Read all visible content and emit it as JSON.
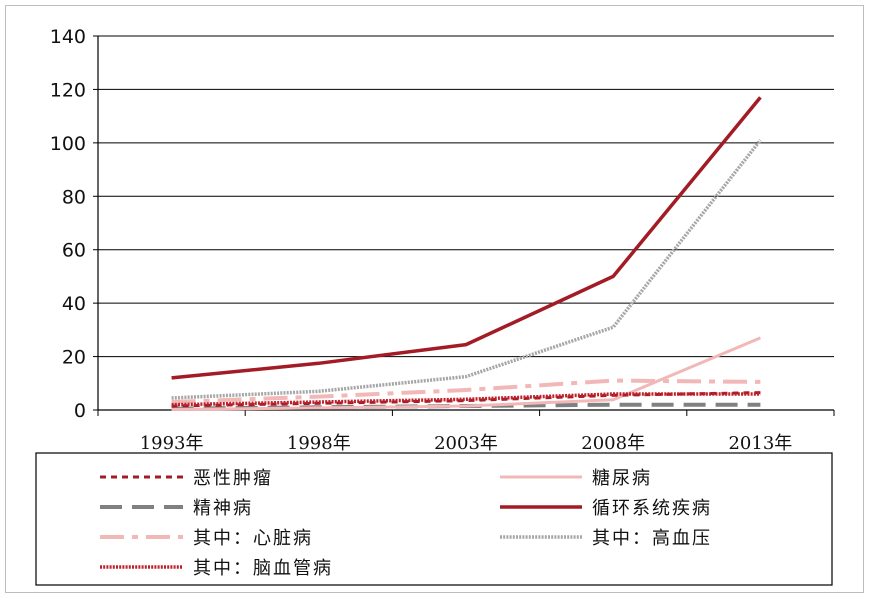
{
  "chart_data": {
    "type": "line",
    "title": "",
    "xlabel": "",
    "ylabel": "",
    "categories": [
      "1993年",
      "1998年",
      "2003年",
      "2008年",
      "2013年"
    ],
    "ylim": [
      0,
      140
    ],
    "yticks": [
      0,
      20,
      40,
      60,
      80,
      100,
      120,
      140
    ],
    "grid": "horizontal",
    "legend_position": "bottom",
    "series": [
      {
        "name": "恶性肿瘤",
        "values": [
          1.5,
          2.5,
          3.5,
          5.5,
          6.5
        ],
        "color": "#a31b25",
        "style": "short-dash"
      },
      {
        "name": "糖尿病",
        "values": [
          0.2,
          0.8,
          1.5,
          3.8,
          27
        ],
        "color": "#f2b8b8",
        "style": "solid"
      },
      {
        "name": "精神病",
        "values": [
          0.5,
          1.0,
          1.5,
          2.0,
          2.0
        ],
        "color": "#808080",
        "style": "long-dash"
      },
      {
        "name": "循环系统疾病",
        "values": [
          12,
          17.5,
          24.5,
          50,
          117
        ],
        "color": "#a31b25",
        "style": "thick-solid"
      },
      {
        "name": "其中：心脏病",
        "values": [
          3,
          5,
          7.5,
          11,
          10.5
        ],
        "color": "#f2b8b8",
        "style": "dash-dot"
      },
      {
        "name": "其中：高血压",
        "values": [
          4.5,
          7,
          12.5,
          31,
          101
        ],
        "color": "#a6a6a6",
        "style": "textured"
      },
      {
        "name": "其中：脑血管病",
        "values": [
          2,
          3,
          4,
          6,
          6
        ],
        "color": "#c0202a",
        "style": "textured"
      }
    ]
  }
}
